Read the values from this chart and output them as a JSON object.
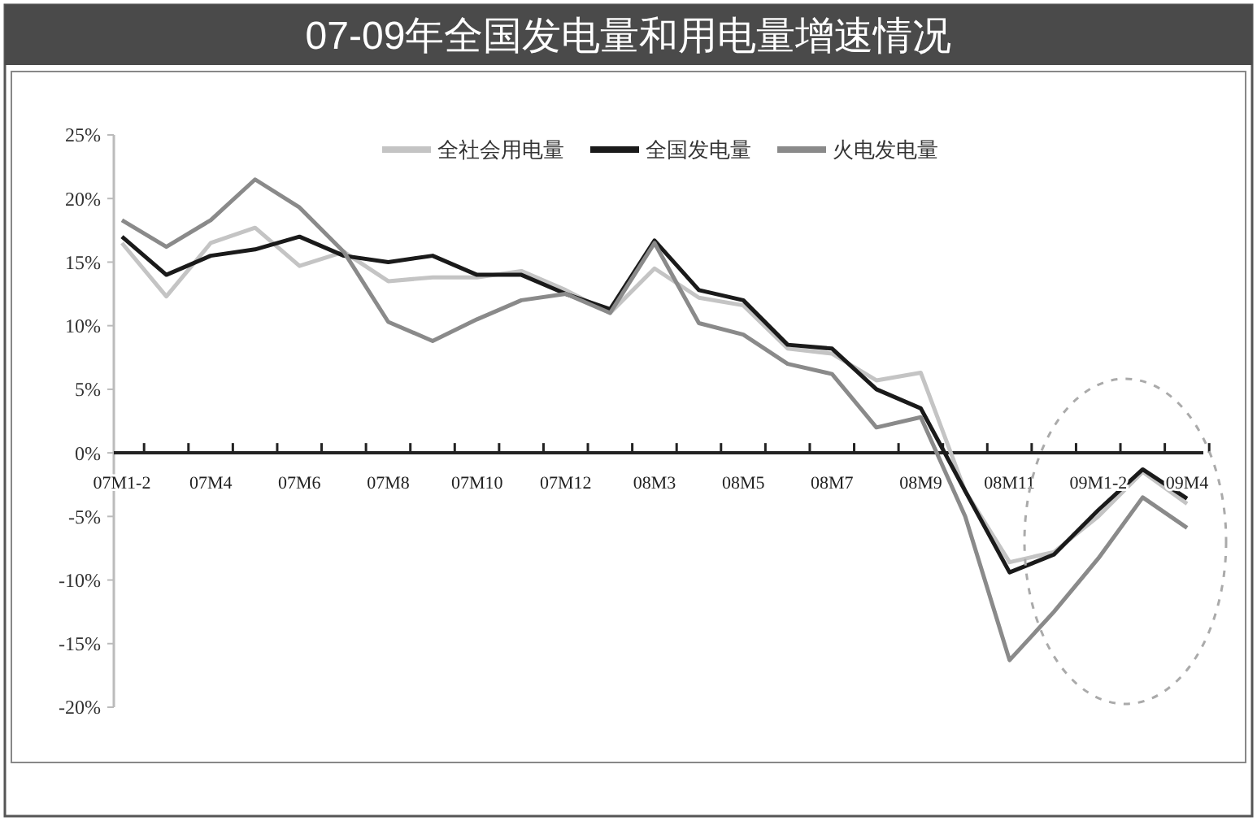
{
  "chart_data": {
    "type": "line",
    "title": "07-09年全国发电量和用电量增速情况",
    "categories": [
      "07M1-2",
      null,
      "07M4",
      null,
      "07M6",
      null,
      "07M8",
      null,
      "07M10",
      null,
      "07M12",
      null,
      "08M3",
      null,
      "08M5",
      null,
      "08M7",
      null,
      "08M9",
      null,
      "08M11",
      null,
      "09M1-2",
      null,
      "09M4"
    ],
    "series": [
      {
        "name": "全社会用电量",
        "color": "#c4c4c4",
        "values": [
          16.5,
          12.3,
          16.5,
          17.7,
          14.7,
          15.8,
          13.5,
          13.8,
          13.8,
          14.3,
          12.8,
          11,
          14.5,
          12.2,
          11.6,
          8.2,
          7.8,
          5.7,
          6.3,
          -3,
          -8.6,
          -7.8,
          -5,
          -1.5,
          -4
        ]
      },
      {
        "name": "全国发电量",
        "color": "#1a1a1a",
        "values": [
          17,
          14,
          15.5,
          16,
          17,
          15.5,
          15,
          15.5,
          14,
          14,
          12.5,
          11.3,
          16.7,
          12.8,
          12,
          8.5,
          8.2,
          5,
          3.5,
          -3,
          -9.4,
          -8,
          -4.5,
          -1.3,
          -3.6
        ]
      },
      {
        "name": "火电发电量",
        "color": "#8a8a8a",
        "values": [
          18.3,
          16.2,
          18.3,
          21.5,
          19.3,
          15.8,
          10.3,
          8.8,
          10.5,
          12,
          12.5,
          11,
          16.5,
          10.2,
          9.3,
          7,
          6.2,
          2,
          2.8,
          -5,
          -16.3,
          -12.5,
          -8.3,
          -3.5,
          -5.9
        ]
      }
    ],
    "ylim": [
      -20,
      25
    ],
    "yticks": [
      {
        "value": -20,
        "label": "-20%"
      },
      {
        "value": -15,
        "label": "-15%"
      },
      {
        "value": -10,
        "label": "-10%"
      },
      {
        "value": -5,
        "label": "-5%"
      },
      {
        "value": 0,
        "label": "0%"
      },
      {
        "value": 5,
        "label": "5%"
      },
      {
        "value": 10,
        "label": "10%"
      },
      {
        "value": 15,
        "label": "15%"
      },
      {
        "value": 20,
        "label": "20%"
      },
      {
        "value": 25,
        "label": "25%"
      }
    ],
    "grid": false,
    "legend": "top right",
    "marker": "none",
    "line_style": "solid"
  }
}
